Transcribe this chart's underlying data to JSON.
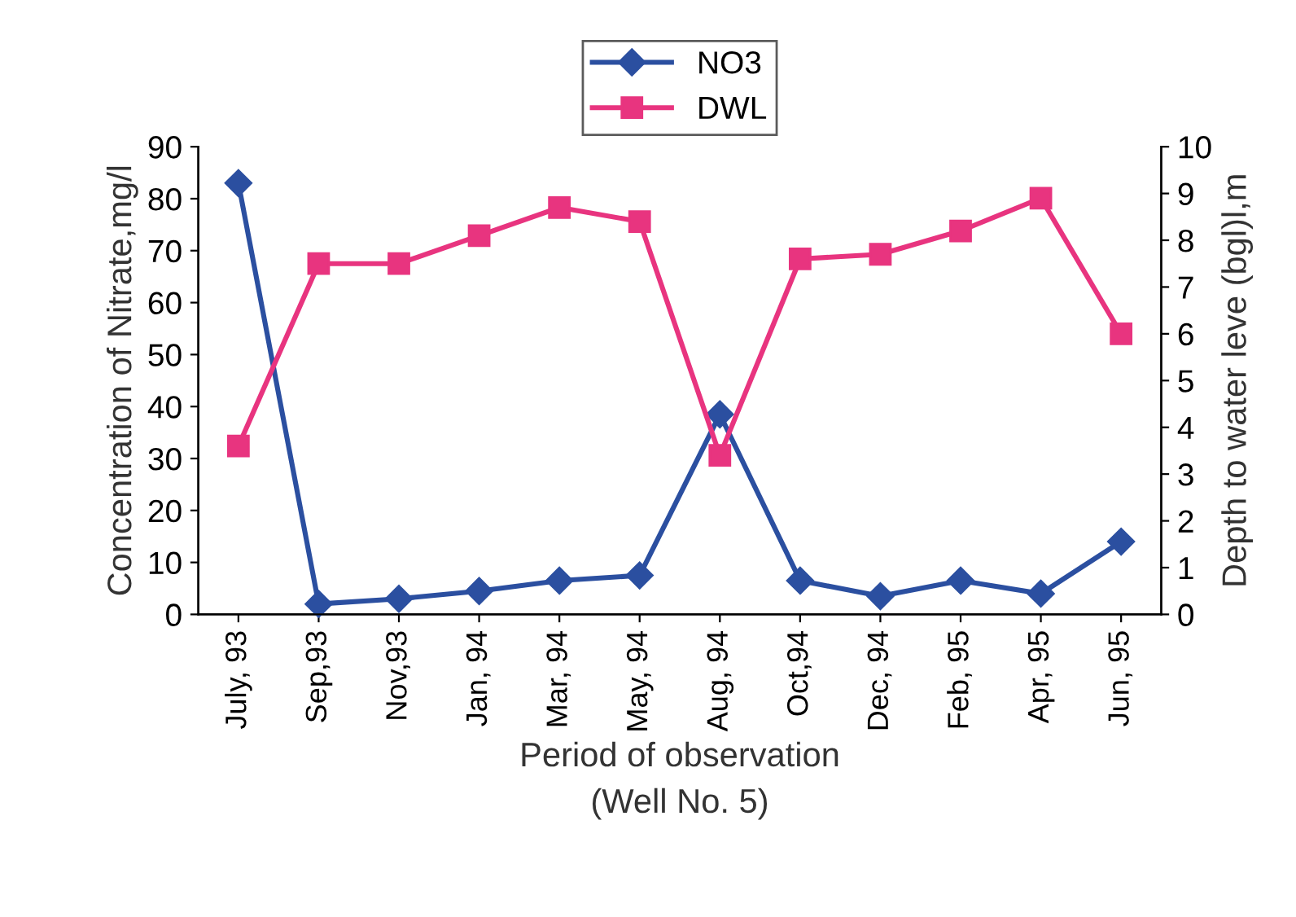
{
  "chart_data": {
    "type": "line",
    "xlabel": "Period of observation\n(Well No. 5)",
    "ylabel": "Concentration of Nitrate,mg/l",
    "y2label": "Depth to water leve (bgl)l,m",
    "categories": [
      "July, 93",
      "Sep,93",
      "Nov,93",
      "Jan, 94",
      "Mar, 94",
      "May, 94",
      "Aug, 94",
      "Oct,94",
      "Dec, 94",
      "Feb, 95",
      "Apr, 95",
      "Jun, 95"
    ],
    "series": [
      {
        "name": "NO3",
        "color": "#2b4fa0",
        "marker": "diamond",
        "values": [
          83,
          2,
          3,
          4.5,
          6.5,
          7.5,
          38.5,
          6.5,
          3.5,
          6.5,
          4,
          14
        ]
      },
      {
        "name": "DWL",
        "color": "#e8347f",
        "marker": "square",
        "axis": "y2",
        "values": [
          3.6,
          7.5,
          7.5,
          8.1,
          8.7,
          8.4,
          3.4,
          7.6,
          7.7,
          8.2,
          8.9,
          6.0
        ]
      }
    ],
    "ylim": [
      0,
      90
    ],
    "yticks": [
      0,
      10,
      20,
      30,
      40,
      50,
      60,
      70,
      80,
      90
    ],
    "y2lim": [
      0,
      10
    ],
    "y2ticks": [
      0,
      1,
      2,
      3,
      4,
      5,
      6,
      7,
      8,
      9,
      10
    ],
    "grid": false,
    "legend": "top"
  }
}
